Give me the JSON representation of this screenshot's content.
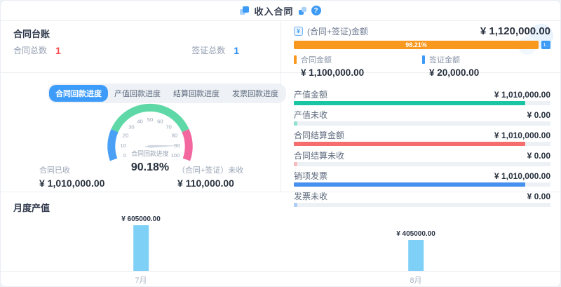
{
  "header": {
    "title": "收入合同",
    "help_glyph": "?"
  },
  "ledger": {
    "title": "合同台账",
    "stats": [
      {
        "label": "合同总数",
        "value": "1",
        "color": "#fa4b50"
      },
      {
        "label": "签证总数",
        "value": "1",
        "color": "#2d8cf0"
      }
    ]
  },
  "tabs": [
    {
      "label": "合同回款进度"
    },
    {
      "label": "产值回款进度"
    },
    {
      "label": "结算回款进度"
    },
    {
      "label": "发票回款进度"
    }
  ],
  "gauge_footer": [
    {
      "label": "合同已收",
      "value": "¥ 1,010,000.00"
    },
    {
      "label": "（合同+签证）未收",
      "value": "¥ 110,000.00"
    }
  ],
  "summary": {
    "total_label": "(合同+签证)金额",
    "total_value": "¥ 1,120,000.00",
    "amount_icon_glyph": "¥",
    "bar": {
      "contract_percent_label": "98.21%",
      "contract_percent": 98.21,
      "visa_chip_label": "1..",
      "contract_color": "#f9981f",
      "visa_color": "#3d9af5"
    },
    "legend": [
      {
        "label": "合同金额",
        "value": "¥ 1,100,000.00",
        "color": "#f9981f"
      },
      {
        "label": "签证金额",
        "value": "¥ 20,000.00",
        "color": "#3d9af5"
      }
    ],
    "rows": [
      {
        "label": "产值金额",
        "value": "¥ 1,010,000.00",
        "percent": 90.18,
        "color": "#19c5a3"
      },
      {
        "label": "产值未收",
        "value": "¥ 0.00",
        "percent": 1.5,
        "color": "#8fe3cf"
      },
      {
        "label": "合同结算金额",
        "value": "¥ 1,010,000.00",
        "percent": 90.18,
        "color": "#f56d6d"
      },
      {
        "label": "合同结算未收",
        "value": "¥ 0.00",
        "percent": 1.5,
        "color": "#f9bcbc"
      },
      {
        "label": "销项发票",
        "value": "¥ 1,010,000.00",
        "percent": 90.18,
        "color": "#4691f0"
      },
      {
        "label": "发票未收",
        "value": "¥ 0.00",
        "percent": 1.5,
        "color": "#aecdf7"
      }
    ]
  },
  "chart_data": [
    {
      "type": "gauge",
      "title": "合同回款进度",
      "value": 90.18,
      "value_label": "90.18%",
      "min": 0,
      "max": 100,
      "tick_step": 10,
      "needle_color": "#d0d6e0",
      "segments": [
        {
          "from": 0,
          "to": 20,
          "color": "#4aa0f5"
        },
        {
          "from": 20,
          "to": 80,
          "color": "#5fd8a7"
        },
        {
          "from": 80,
          "to": 100,
          "color": "#f2679e"
        }
      ]
    },
    {
      "type": "bar",
      "title": "月度产值",
      "categories": [
        "7月",
        "8月"
      ],
      "values": [
        605000,
        405000
      ],
      "data_labels": [
        "¥ 605000.00",
        "¥ 405000.00"
      ],
      "bar_color": "#7ed0f6",
      "xlabel": "",
      "ylabel": "",
      "ylim": [
        0,
        650000
      ],
      "grid": false,
      "legend_position": "none"
    }
  ]
}
